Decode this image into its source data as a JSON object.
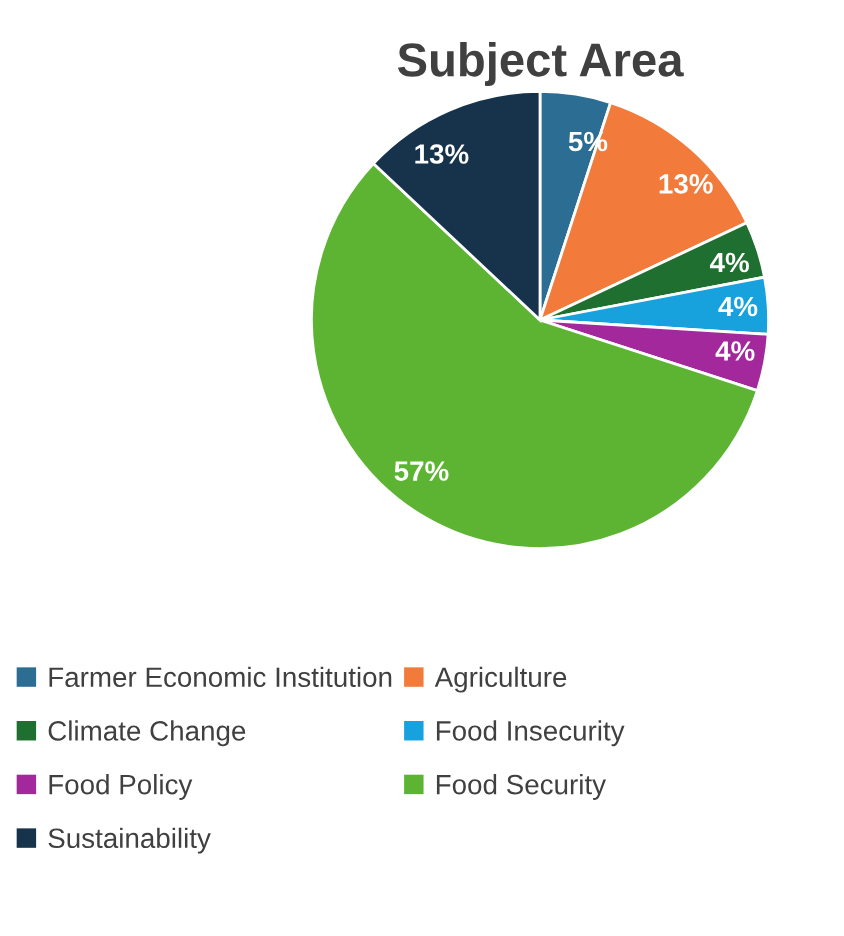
{
  "chart_data": {
    "type": "pie",
    "title": "Subject Area",
    "categories": [
      "Farmer Economic Institution",
      "Agriculture",
      "Climate Change",
      "Food Insecurity",
      "Food Policy",
      "Food Security",
      "Sustainability"
    ],
    "values": [
      5,
      13,
      4,
      4,
      4,
      57,
      13
    ],
    "value_labels": [
      "5%",
      "13%",
      "4%",
      "4%",
      "4%",
      "57%",
      "13%"
    ],
    "colors": [
      "#2c6d93",
      "#f27b3b",
      "#1f6f30",
      "#17a2de",
      "#a2289b",
      "#5db433",
      "#16334b"
    ],
    "legend": "bottom"
  }
}
